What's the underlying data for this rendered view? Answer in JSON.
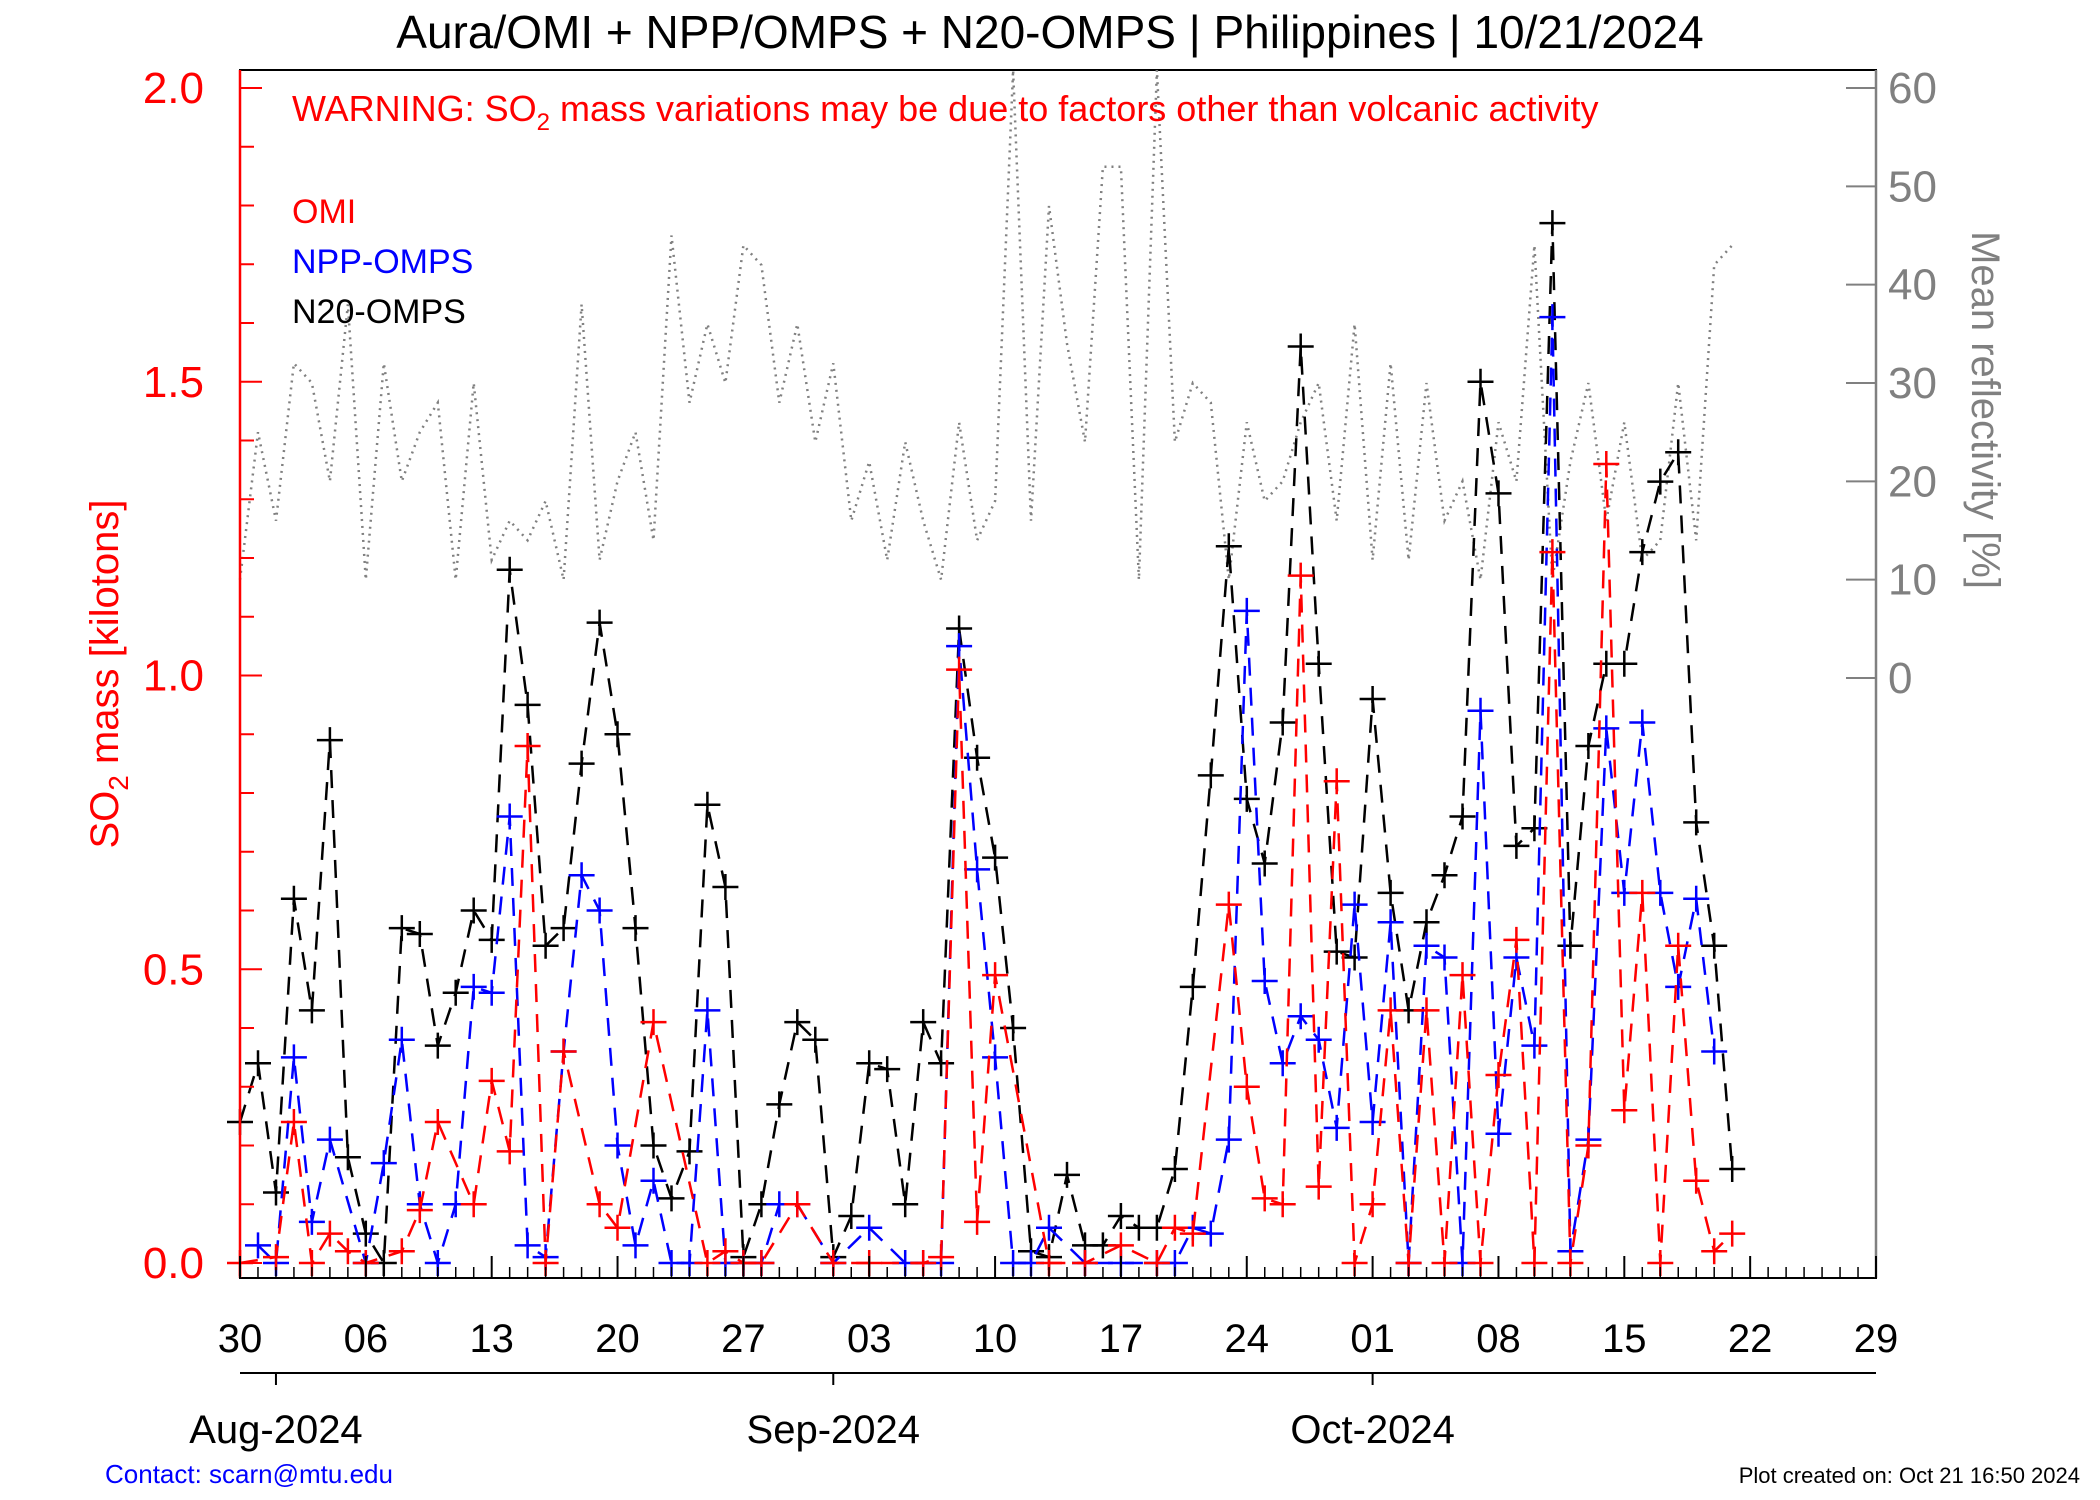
{
  "colors": {
    "omi": "#ff0000",
    "npp": "#0000ff",
    "n20": "#000000",
    "reflectivity": "#808080",
    "left_axis": "#ff0000",
    "right_axis": "#808080",
    "contact": "#0000ff"
  },
  "warning": {
    "prefix": "WARNING: SO",
    "sub": "2",
    "suffix": " mass variations may be due to factors other than volcanic activity"
  },
  "footer": {
    "contact": "Contact: scarn@mtu.edu",
    "created": "Plot created on: Oct 21 16:50 2024"
  },
  "chart_data": {
    "type": "line",
    "title": "Aura/OMI + NPP/OMPS + N20-OMPS | Philippines | 10/21/2024",
    "ylabel": {
      "prefix": "SO",
      "sub": "2",
      "suffix": " mass [kilotons]"
    },
    "y2label": "Mean reflectivity [%]",
    "ylim": [
      0.0,
      2.0
    ],
    "y_ticks": [
      "0.0",
      "0.5",
      "1.0",
      "1.5",
      "2.0"
    ],
    "y2_ticks": [
      "0",
      "10",
      "20",
      "30",
      "40",
      "50",
      "60"
    ],
    "xlim": [
      "2024-07-30",
      "2024-10-29"
    ],
    "x_day_ticks": [
      "30",
      "06",
      "13",
      "20",
      "27",
      "03",
      "10",
      "17",
      "24",
      "01",
      "08",
      "15",
      "22",
      "29"
    ],
    "month_labels": [
      "Aug-2024",
      "Sep-2024",
      "Oct-2024"
    ],
    "grid": false,
    "legend_position": "top-left",
    "series": [
      {
        "name": "OMI",
        "style": "dashed-plus",
        "x": [
          "2024-07-30",
          "2024-08-01",
          "2024-08-02",
          "2024-08-03",
          "2024-08-04",
          "2024-08-05",
          "2024-08-06",
          "2024-08-08",
          "2024-08-09",
          "2024-08-10",
          "2024-08-12",
          "2024-08-13",
          "2024-08-14",
          "2024-08-15",
          "2024-08-16",
          "2024-08-17",
          "2024-08-19",
          "2024-08-20",
          "2024-08-22",
          "2024-08-25",
          "2024-08-26",
          "2024-08-27",
          "2024-08-28",
          "2024-08-30",
          "2024-09-01",
          "2024-09-03",
          "2024-09-06",
          "2024-09-07",
          "2024-09-08",
          "2024-09-09",
          "2024-09-10",
          "2024-09-13",
          "2024-09-15",
          "2024-09-17",
          "2024-09-19",
          "2024-09-20",
          "2024-09-21",
          "2024-09-23",
          "2024-09-24",
          "2024-09-25",
          "2024-09-26",
          "2024-09-27",
          "2024-09-28",
          "2024-09-29",
          "2024-09-30",
          "2024-10-01",
          "2024-10-02",
          "2024-10-03",
          "2024-10-04",
          "2024-10-05",
          "2024-10-06",
          "2024-10-07",
          "2024-10-08",
          "2024-10-09",
          "2024-10-10",
          "2024-10-11",
          "2024-10-12",
          "2024-10-13",
          "2024-10-14",
          "2024-10-15",
          "2024-10-16",
          "2024-10-17",
          "2024-10-18",
          "2024-10-19",
          "2024-10-20",
          "2024-10-21"
        ],
        "y": [
          0.0,
          0.01,
          0.24,
          0.0,
          0.05,
          0.02,
          0.0,
          0.02,
          0.09,
          0.24,
          0.1,
          0.31,
          0.19,
          0.88,
          0.0,
          0.36,
          0.1,
          0.06,
          0.41,
          0.0,
          0.02,
          0.0,
          0.0,
          0.1,
          0.0,
          0.0,
          0.0,
          0.01,
          1.01,
          0.07,
          0.49,
          0.0,
          0.0,
          0.03,
          0.0,
          0.06,
          0.05,
          0.61,
          0.3,
          0.11,
          0.1,
          1.17,
          0.13,
          0.82,
          0.0,
          0.1,
          0.43,
          0.0,
          0.43,
          0.0,
          0.49,
          0.0,
          0.32,
          0.55,
          0.0,
          1.21,
          0.0,
          0.2,
          1.36,
          0.26,
          0.63,
          0.0,
          0.54,
          0.14,
          0.02,
          0.05
        ]
      },
      {
        "name": "NPP-OMPS",
        "style": "dashed-plus",
        "x": [
          "2024-07-31",
          "2024-08-01",
          "2024-08-02",
          "2024-08-03",
          "2024-08-04",
          "2024-08-06",
          "2024-08-07",
          "2024-08-08",
          "2024-08-09",
          "2024-08-10",
          "2024-08-11",
          "2024-08-12",
          "2024-08-13",
          "2024-08-14",
          "2024-08-15",
          "2024-08-16",
          "2024-08-17",
          "2024-08-18",
          "2024-08-19",
          "2024-08-20",
          "2024-08-21",
          "2024-08-22",
          "2024-08-23",
          "2024-08-24",
          "2024-08-25",
          "2024-08-26",
          "2024-08-27",
          "2024-08-28",
          "2024-08-29",
          "2024-08-30",
          "2024-09-01",
          "2024-09-03",
          "2024-09-05",
          "2024-09-06",
          "2024-09-07",
          "2024-09-08",
          "2024-09-09",
          "2024-09-10",
          "2024-09-11",
          "2024-09-12",
          "2024-09-13",
          "2024-09-15",
          "2024-09-17",
          "2024-09-19",
          "2024-09-20",
          "2024-09-21",
          "2024-09-22",
          "2024-09-23",
          "2024-09-24",
          "2024-09-25",
          "2024-09-26",
          "2024-09-27",
          "2024-09-28",
          "2024-09-29",
          "2024-09-30",
          "2024-10-01",
          "2024-10-02",
          "2024-10-03",
          "2024-10-04",
          "2024-10-05",
          "2024-10-06",
          "2024-10-07",
          "2024-10-08",
          "2024-10-09",
          "2024-10-10",
          "2024-10-11",
          "2024-10-12",
          "2024-10-13",
          "2024-10-14",
          "2024-10-15",
          "2024-10-16",
          "2024-10-17",
          "2024-10-18",
          "2024-10-19",
          "2024-10-20"
        ],
        "y": [
          0.03,
          0.0,
          0.35,
          0.07,
          0.21,
          0.0,
          0.17,
          0.38,
          0.1,
          0.0,
          0.1,
          0.47,
          0.46,
          0.76,
          0.03,
          0.01,
          0.36,
          0.66,
          0.6,
          0.2,
          0.03,
          0.14,
          0.0,
          0.0,
          0.43,
          0.0,
          0.0,
          0.0,
          0.1,
          0.1,
          0.0,
          0.06,
          0.0,
          0.0,
          0.0,
          1.05,
          0.67,
          0.35,
          0.0,
          0.0,
          0.06,
          0.0,
          0.0,
          0.0,
          0.0,
          0.06,
          0.05,
          0.21,
          1.11,
          0.48,
          0.34,
          0.42,
          0.38,
          0.23,
          0.61,
          0.24,
          0.58,
          0.0,
          0.54,
          0.52,
          0.0,
          0.94,
          0.22,
          0.52,
          0.37,
          1.61,
          0.02,
          0.21,
          0.91,
          0.63,
          0.92,
          0.63,
          0.47,
          0.62,
          0.36
        ]
      },
      {
        "name": "N20-OMPS",
        "style": "dashed-plus",
        "x": [
          "2024-07-30",
          "2024-07-31",
          "2024-08-01",
          "2024-08-02",
          "2024-08-03",
          "2024-08-04",
          "2024-08-05",
          "2024-08-06",
          "2024-08-07",
          "2024-08-08",
          "2024-08-09",
          "2024-08-10",
          "2024-08-11",
          "2024-08-12",
          "2024-08-13",
          "2024-08-14",
          "2024-08-15",
          "2024-08-16",
          "2024-08-17",
          "2024-08-18",
          "2024-08-19",
          "2024-08-20",
          "2024-08-21",
          "2024-08-22",
          "2024-08-23",
          "2024-08-24",
          "2024-08-25",
          "2024-08-26",
          "2024-08-27",
          "2024-08-28",
          "2024-08-29",
          "2024-08-30",
          "2024-08-31",
          "2024-09-01",
          "2024-09-02",
          "2024-09-03",
          "2024-09-04",
          "2024-09-05",
          "2024-09-06",
          "2024-09-07",
          "2024-09-08",
          "2024-09-09",
          "2024-09-10",
          "2024-09-11",
          "2024-09-12",
          "2024-09-13",
          "2024-09-14",
          "2024-09-15",
          "2024-09-16",
          "2024-09-17",
          "2024-09-18",
          "2024-09-19",
          "2024-09-20",
          "2024-09-21",
          "2024-09-22",
          "2024-09-23",
          "2024-09-24",
          "2024-09-25",
          "2024-09-26",
          "2024-09-27",
          "2024-09-28",
          "2024-09-29",
          "2024-09-30",
          "2024-10-01",
          "2024-10-02",
          "2024-10-03",
          "2024-10-04",
          "2024-10-05",
          "2024-10-06",
          "2024-10-07",
          "2024-10-08",
          "2024-10-09",
          "2024-10-10",
          "2024-10-11",
          "2024-10-12",
          "2024-10-13",
          "2024-10-14",
          "2024-10-15",
          "2024-10-16",
          "2024-10-17",
          "2024-10-18",
          "2024-10-19",
          "2024-10-20",
          "2024-10-21"
        ],
        "y": [
          0.24,
          0.34,
          0.12,
          0.62,
          0.43,
          0.89,
          0.18,
          0.05,
          0.0,
          0.57,
          0.56,
          0.37,
          0.46,
          0.6,
          0.55,
          1.18,
          0.95,
          0.54,
          0.57,
          0.85,
          1.09,
          0.9,
          0.57,
          0.2,
          0.11,
          0.19,
          0.78,
          0.64,
          0.01,
          0.1,
          0.27,
          0.41,
          0.38,
          0.01,
          0.08,
          0.34,
          0.33,
          0.1,
          0.41,
          0.34,
          1.08,
          0.86,
          0.69,
          0.4,
          0.02,
          0.01,
          0.15,
          0.03,
          0.03,
          0.08,
          0.06,
          0.06,
          0.16,
          0.47,
          0.83,
          1.22,
          0.79,
          0.68,
          0.92,
          1.56,
          1.02,
          0.53,
          0.52,
          0.96,
          0.63,
          0.43,
          0.58,
          0.66,
          0.76,
          1.5,
          1.31,
          0.71,
          0.74,
          1.77,
          0.54,
          0.88,
          1.02,
          1.02,
          1.21,
          1.33,
          1.38,
          0.75,
          0.54,
          0.16
        ]
      },
      {
        "name": "",
        "axis": "right",
        "style": "dotted",
        "x": [
          "2024-07-30",
          "2024-07-31",
          "2024-08-01",
          "2024-08-02",
          "2024-08-03",
          "2024-08-04",
          "2024-08-05",
          "2024-08-06",
          "2024-08-07",
          "2024-08-08",
          "2024-08-09",
          "2024-08-10",
          "2024-08-11",
          "2024-08-12",
          "2024-08-13",
          "2024-08-14",
          "2024-08-15",
          "2024-08-16",
          "2024-08-17",
          "2024-08-18",
          "2024-08-19",
          "2024-08-20",
          "2024-08-21",
          "2024-08-22",
          "2024-08-23",
          "2024-08-24",
          "2024-08-25",
          "2024-08-26",
          "2024-08-27",
          "2024-08-28",
          "2024-08-29",
          "2024-08-30",
          "2024-08-31",
          "2024-09-01",
          "2024-09-02",
          "2024-09-03",
          "2024-09-04",
          "2024-09-05",
          "2024-09-06",
          "2024-09-07",
          "2024-09-08",
          "2024-09-09",
          "2024-09-10",
          "2024-09-11",
          "2024-09-12",
          "2024-09-13",
          "2024-09-14",
          "2024-09-15",
          "2024-09-16",
          "2024-09-17",
          "2024-09-18",
          "2024-09-19",
          "2024-09-20",
          "2024-09-21",
          "2024-09-22",
          "2024-09-23",
          "2024-09-24",
          "2024-09-25",
          "2024-09-26",
          "2024-09-27",
          "2024-09-28",
          "2024-09-29",
          "2024-09-30",
          "2024-10-01",
          "2024-10-02",
          "2024-10-03",
          "2024-10-04",
          "2024-10-05",
          "2024-10-06",
          "2024-10-07",
          "2024-10-08",
          "2024-10-09",
          "2024-10-10",
          "2024-10-11",
          "2024-10-12",
          "2024-10-13",
          "2024-10-14",
          "2024-10-15",
          "2024-10-16",
          "2024-10-17",
          "2024-10-18",
          "2024-10-19",
          "2024-10-20",
          "2024-10-21"
        ],
        "y": [
          10,
          25,
          16,
          32,
          30,
          20,
          38,
          10,
          32,
          20,
          25,
          28,
          10,
          30,
          12,
          16,
          14,
          18,
          10,
          38,
          12,
          20,
          25,
          14,
          45,
          28,
          36,
          30,
          44,
          42,
          28,
          36,
          24,
          32,
          16,
          22,
          12,
          24,
          16,
          10,
          26,
          14,
          18,
          66,
          16,
          48,
          34,
          24,
          52,
          52,
          10,
          64,
          24,
          30,
          28,
          10,
          26,
          18,
          20,
          26,
          30,
          16,
          36,
          12,
          32,
          12,
          30,
          16,
          20,
          10,
          26,
          20,
          44,
          10,
          22,
          30,
          16,
          26,
          12,
          14,
          30,
          14,
          42,
          44
        ]
      }
    ]
  }
}
